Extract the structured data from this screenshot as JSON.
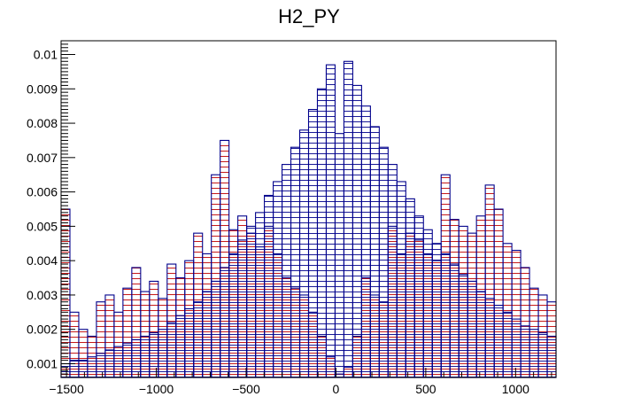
{
  "chart_data": {
    "type": "bar",
    "title": "H2_PY",
    "xlabel": "",
    "ylabel": "",
    "xlim": [
      -1530,
      1225
    ],
    "ylim": [
      0.0006,
      0.0104
    ],
    "grid": false,
    "x_ticks": [
      -1500,
      -1000,
      -500,
      0,
      500,
      1000
    ],
    "x_tick_labels": [
      "−1500",
      "−1000",
      "−500",
      "0",
      "500",
      "1000"
    ],
    "y_ticks": [
      0.001,
      0.002,
      0.003,
      0.004,
      0.005,
      0.006,
      0.007,
      0.008,
      0.009,
      0.01
    ],
    "y_tick_labels": [
      "0.001",
      "0.002",
      "0.003",
      "0.004",
      "0.005",
      "0.006",
      "0.007",
      "0.008",
      "0.009",
      "0.01"
    ],
    "colors": {
      "blue": "#00008b",
      "red": "#c00000"
    },
    "series": [
      {
        "style": "blue hatched histogram",
        "x_range": [
          -1530,
          1225
        ],
        "values": [
          0.001,
          0.0011,
          0.0011,
          0.0012,
          0.0013,
          0.0014,
          0.0015,
          0.0016,
          0.0017,
          0.0018,
          0.0019,
          0.002,
          0.0022,
          0.0024,
          0.0026,
          0.0028,
          0.0031,
          0.0034,
          0.0038,
          0.0042,
          0.0046,
          0.005,
          0.0054,
          0.0059,
          0.0063,
          0.0068,
          0.0073,
          0.0078,
          0.0084,
          0.009,
          0.0097,
          0.0077,
          0.0098,
          0.0091,
          0.0085,
          0.0079,
          0.0073,
          0.0068,
          0.0063,
          0.0058,
          0.0053,
          0.0049,
          0.0045,
          0.0042,
          0.0039,
          0.0036,
          0.0034,
          0.0031,
          0.0029,
          0.0027,
          0.0025,
          0.0023,
          0.0021,
          0.002,
          0.0019,
          0.0018
        ]
      },
      {
        "style": "red hatched histogram",
        "x_range": [
          -1530,
          1225
        ],
        "values": [
          0.0055,
          0.0025,
          0.002,
          0.0018,
          0.0028,
          0.003,
          0.0025,
          0.0032,
          0.0038,
          0.0031,
          0.0034,
          0.0029,
          0.0039,
          0.0035,
          0.004,
          0.0048,
          0.0042,
          0.0065,
          0.0075,
          0.0049,
          0.0053,
          0.0048,
          0.0044,
          0.005,
          0.0042,
          0.0035,
          0.0032,
          0.003,
          0.0025,
          0.0018,
          0.0012,
          0.0007,
          0.0009,
          0.0018,
          0.0035,
          0.003,
          0.0028,
          0.005,
          0.0042,
          0.0048,
          0.0046,
          0.0042,
          0.004,
          0.0065,
          0.0052,
          0.005,
          0.0048,
          0.0053,
          0.0062,
          0.0055,
          0.0045,
          0.0043,
          0.0038,
          0.0032,
          0.003,
          0.0028
        ]
      }
    ]
  }
}
